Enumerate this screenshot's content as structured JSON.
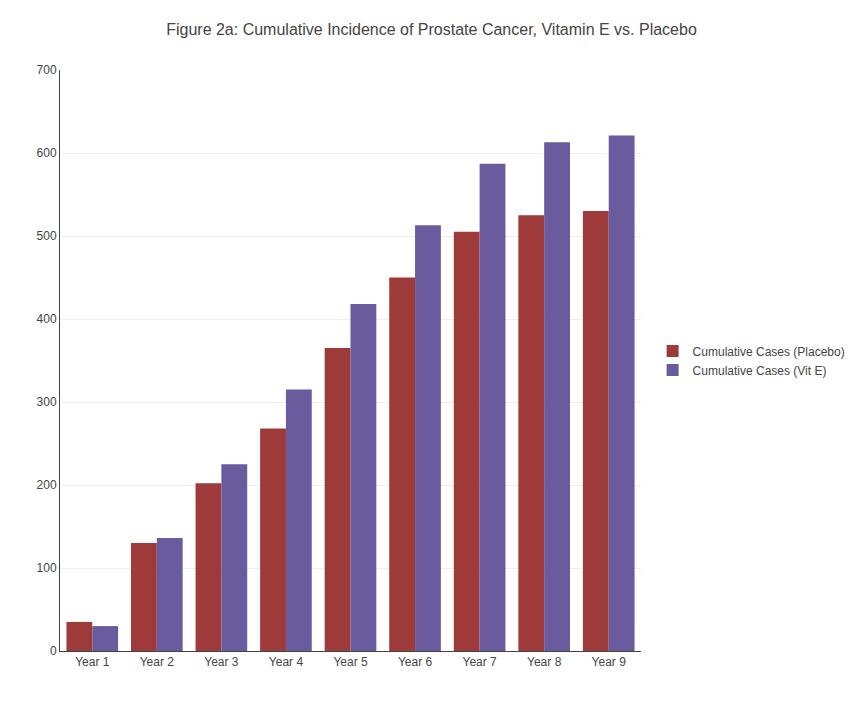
{
  "chart_data": {
    "type": "bar",
    "title": "Figure 2a: Cumulative Incidence of Prostate Cancer, Vitamin E vs. Placebo",
    "categories": [
      "Year 1",
      "Year 2",
      "Year 3",
      "Year 4",
      "Year 5",
      "Year 6",
      "Year 7",
      "Year 8",
      "Year 9"
    ],
    "series": [
      {
        "name": "Cumulative Cases (Placebo)",
        "color": "#9E3A3A",
        "values": [
          35,
          130,
          202,
          268,
          365,
          450,
          505,
          525,
          530
        ]
      },
      {
        "name": "Cumulative Cases (Vit E)",
        "color": "#6A5A9E",
        "values": [
          30,
          136,
          225,
          315,
          418,
          513,
          587,
          613,
          621
        ]
      }
    ],
    "ylim": [
      0,
      700
    ],
    "yticks": [
      0,
      100,
      200,
      300,
      400,
      500,
      600,
      700
    ],
    "grid": true,
    "legend": "right"
  }
}
